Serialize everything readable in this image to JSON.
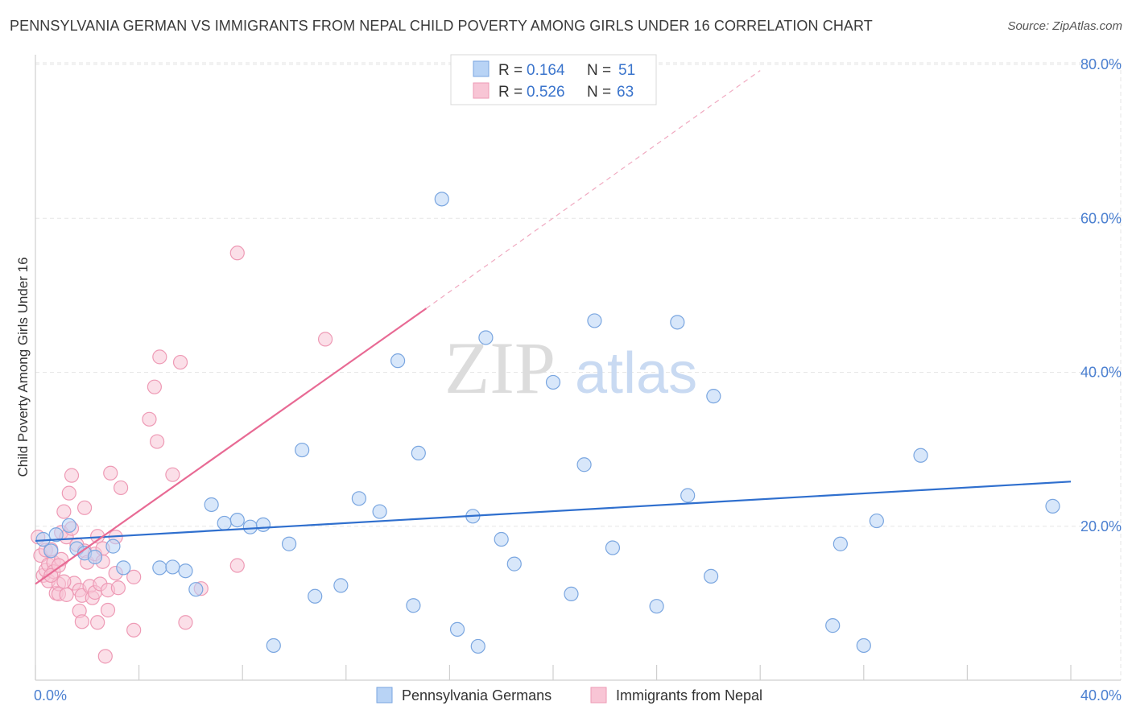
{
  "header": {
    "title": "PENNSYLVANIA GERMAN VS IMMIGRANTS FROM NEPAL CHILD POVERTY AMONG GIRLS UNDER 16 CORRELATION CHART",
    "source": "Source: ZipAtlas.com"
  },
  "watermark": {
    "zip": "ZIP",
    "atlas": "atlas"
  },
  "colors": {
    "blue_fill": "#b8d3f5",
    "blue_stroke": "#7aa6e0",
    "blue_line": "#2f6fce",
    "pink_fill": "#f8c5d5",
    "pink_stroke": "#ee9ab5",
    "pink_line": "#e86a94",
    "tick_text": "#4a7fd0",
    "grid": "#e6e6e6"
  },
  "legend": {
    "rows": [
      {
        "r_label": "R = ",
        "r_value": "0.164",
        "n_label": "N = ",
        "n_value": "51"
      },
      {
        "r_label": "R = ",
        "r_value": "0.526",
        "n_label": "N = ",
        "n_value": "63"
      }
    ]
  },
  "bottom_legend": [
    "Pennsylvania Germans",
    "Immigrants from Nepal"
  ],
  "chart_data": {
    "type": "scatter",
    "title": "PENNSYLVANIA GERMAN VS IMMIGRANTS FROM NEPAL CHILD POVERTY AMONG GIRLS UNDER 16 CORRELATION CHART",
    "xlabel": "",
    "ylabel": "Child Poverty Among Girls Under 16",
    "xlim": [
      0,
      40
    ],
    "ylim": [
      0,
      80
    ],
    "x_tick_labels": [
      "0.0%",
      "40.0%"
    ],
    "y_tick_labels": [
      "20.0%",
      "40.0%",
      "60.0%",
      "80.0%"
    ],
    "y_ticks": [
      20,
      40,
      60,
      80
    ],
    "x_minor_ticks": [
      0,
      4,
      8,
      12,
      16,
      20,
      24,
      28,
      32,
      36,
      40
    ],
    "grid": true,
    "legend_position": "top-center",
    "series": [
      {
        "name": "Pennsylvania Germans",
        "r": 0.164,
        "n": 51,
        "trend": {
          "x": [
            0,
            40
          ],
          "y": [
            18.1,
            25.8
          ],
          "dashed_from": null
        },
        "points": [
          [
            0.3,
            18.3
          ],
          [
            0.6,
            16.8
          ],
          [
            0.8,
            18.9
          ],
          [
            1.3,
            20.1
          ],
          [
            1.6,
            17.1
          ],
          [
            1.9,
            16.5
          ],
          [
            2.3,
            16.0
          ],
          [
            3.0,
            17.4
          ],
          [
            3.4,
            14.6
          ],
          [
            4.8,
            14.6
          ],
          [
            5.3,
            14.7
          ],
          [
            5.8,
            14.2
          ],
          [
            6.2,
            11.8
          ],
          [
            6.8,
            22.8
          ],
          [
            7.3,
            20.4
          ],
          [
            7.8,
            20.8
          ],
          [
            8.3,
            19.9
          ],
          [
            8.8,
            20.2
          ],
          [
            9.2,
            4.5
          ],
          [
            9.8,
            17.7
          ],
          [
            10.3,
            29.9
          ],
          [
            10.8,
            10.9
          ],
          [
            11.8,
            12.3
          ],
          [
            12.5,
            23.6
          ],
          [
            13.3,
            21.9
          ],
          [
            14.0,
            41.5
          ],
          [
            14.6,
            9.7
          ],
          [
            14.8,
            29.5
          ],
          [
            15.7,
            62.5
          ],
          [
            16.3,
            6.6
          ],
          [
            16.9,
            21.3
          ],
          [
            17.1,
            4.4
          ],
          [
            17.4,
            44.5
          ],
          [
            18.0,
            18.3
          ],
          [
            18.5,
            15.1
          ],
          [
            20.0,
            38.7
          ],
          [
            20.7,
            11.2
          ],
          [
            21.2,
            28.0
          ],
          [
            21.6,
            46.7
          ],
          [
            22.3,
            17.2
          ],
          [
            24.0,
            9.6
          ],
          [
            24.8,
            46.5
          ],
          [
            25.2,
            24.0
          ],
          [
            26.2,
            36.9
          ],
          [
            26.1,
            13.5
          ],
          [
            31.1,
            17.7
          ],
          [
            30.8,
            7.1
          ],
          [
            32.0,
            4.5
          ],
          [
            32.5,
            20.7
          ],
          [
            34.2,
            29.2
          ],
          [
            39.3,
            22.6
          ]
        ]
      },
      {
        "name": "Immigrants from Nepal",
        "r": 0.526,
        "n": 63,
        "trend": {
          "x": [
            0,
            15.1
          ],
          "y": [
            12.5,
            48.3
          ],
          "dashed_to": {
            "x": 28,
            "y": 79.2
          }
        },
        "points": [
          [
            0.1,
            18.6
          ],
          [
            0.2,
            16.2
          ],
          [
            0.3,
            13.6
          ],
          [
            0.4,
            14.3
          ],
          [
            0.4,
            16.9
          ],
          [
            0.5,
            15.0
          ],
          [
            0.5,
            12.9
          ],
          [
            0.6,
            17.0
          ],
          [
            0.7,
            15.3
          ],
          [
            0.7,
            14.1
          ],
          [
            0.8,
            11.3
          ],
          [
            0.9,
            12.5
          ],
          [
            0.9,
            11.2
          ],
          [
            1.0,
            19.2
          ],
          [
            1.0,
            15.7
          ],
          [
            1.1,
            21.9
          ],
          [
            1.2,
            18.6
          ],
          [
            1.2,
            11.1
          ],
          [
            1.3,
            24.3
          ],
          [
            1.4,
            26.6
          ],
          [
            1.4,
            19.7
          ],
          [
            1.5,
            12.6
          ],
          [
            1.6,
            17.6
          ],
          [
            1.7,
            9.0
          ],
          [
            1.7,
            11.7
          ],
          [
            1.8,
            7.6
          ],
          [
            1.8,
            11.0
          ],
          [
            1.9,
            16.8
          ],
          [
            1.9,
            22.4
          ],
          [
            2.0,
            15.3
          ],
          [
            2.1,
            12.2
          ],
          [
            2.2,
            10.7
          ],
          [
            2.3,
            11.4
          ],
          [
            2.3,
            16.4
          ],
          [
            2.4,
            7.5
          ],
          [
            2.4,
            18.7
          ],
          [
            2.5,
            12.5
          ],
          [
            2.6,
            17.1
          ],
          [
            2.6,
            15.4
          ],
          [
            2.8,
            11.7
          ],
          [
            2.7,
            3.1
          ],
          [
            2.8,
            9.1
          ],
          [
            2.9,
            26.9
          ],
          [
            3.1,
            13.9
          ],
          [
            3.1,
            18.6
          ],
          [
            3.2,
            12.0
          ],
          [
            3.3,
            25.0
          ],
          [
            3.8,
            13.4
          ],
          [
            3.8,
            6.5
          ],
          [
            4.4,
            33.9
          ],
          [
            4.6,
            38.1
          ],
          [
            4.7,
            31.0
          ],
          [
            4.8,
            42.0
          ],
          [
            5.3,
            26.7
          ],
          [
            5.6,
            41.3
          ],
          [
            5.8,
            7.5
          ],
          [
            6.4,
            11.9
          ],
          [
            7.8,
            55.5
          ],
          [
            7.8,
            14.9
          ],
          [
            11.2,
            44.3
          ],
          [
            0.6,
            13.6
          ],
          [
            0.9,
            14.9
          ],
          [
            1.1,
            12.8
          ]
        ]
      }
    ]
  }
}
